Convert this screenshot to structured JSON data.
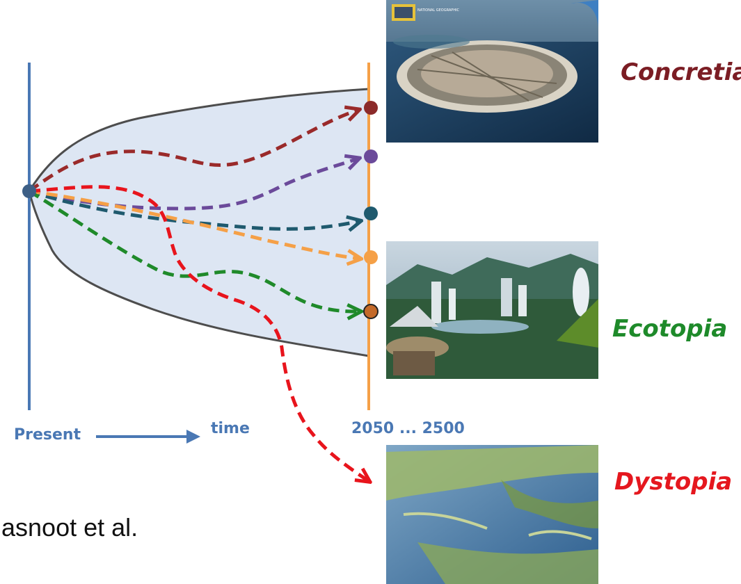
{
  "axis": {
    "present_label": "Present",
    "time_label": "time",
    "horizon_label": "2050 ... 2500"
  },
  "scenarios": [
    {
      "name": "Concretia",
      "color": "#7b1d24"
    },
    {
      "name": "Ecotopia",
      "color": "#1e8a2a"
    },
    {
      "name": "Dystopia",
      "color": "#e5171e"
    }
  ],
  "credit": "asnoot et al.",
  "colors": {
    "present_axis": "#4a78b4",
    "horizon_axis": "#f5a047",
    "envelope_fill": "#dde6f3",
    "envelope_stroke": "#4d4d4d",
    "path_darkred": "#9a2a2a",
    "path_purple": "#6b4a9a",
    "path_teal": "#1f5a6e",
    "path_orange": "#f5a047",
    "path_green": "#1f8a2a",
    "path_red": "#e8141c"
  },
  "images": [
    {
      "name": "island-city-photo",
      "logo_text": "NATIONAL GEOGRAPHIC"
    },
    {
      "name": "eco-city-photo"
    },
    {
      "name": "flooded-delta-photo"
    }
  ]
}
